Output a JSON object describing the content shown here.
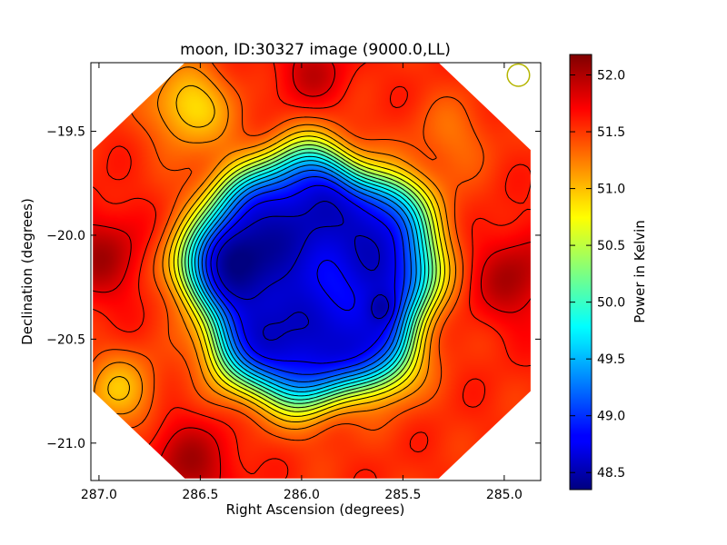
{
  "chart_data": {
    "type": "heatmap",
    "title": "moon, ID:30327 image (9000.0,LL)",
    "xlabel": "Right Ascension (degrees)",
    "ylabel": "Declination (degrees)",
    "xlim": [
      287.04,
      284.82
    ],
    "ylim": [
      -21.18,
      -19.17
    ],
    "x_ticks": [
      {
        "value": 287.0,
        "label": "287.0"
      },
      {
        "value": 286.5,
        "label": "286.5"
      },
      {
        "value": 286.0,
        "label": "286.0"
      },
      {
        "value": 285.5,
        "label": "285.5"
      },
      {
        "value": 285.0,
        "label": "285.0"
      }
    ],
    "y_ticks": [
      {
        "value": -19.5,
        "label": "−19.5"
      },
      {
        "value": -20.0,
        "label": "−20.0"
      },
      {
        "value": -20.5,
        "label": "−20.5"
      },
      {
        "value": -21.0,
        "label": "−21.0"
      }
    ],
    "colorbar": {
      "label": "Power in Kelvin",
      "range": [
        48.35,
        52.18
      ],
      "colormap": "jet",
      "ticks": [
        {
          "value": 48.5,
          "label": "48.5"
        },
        {
          "value": 49.0,
          "label": "49.0"
        },
        {
          "value": 49.5,
          "label": "49.5"
        },
        {
          "value": 50.0,
          "label": "50.0"
        },
        {
          "value": 50.5,
          "label": "50.5"
        },
        {
          "value": 51.0,
          "label": "51.0"
        },
        {
          "value": 51.5,
          "label": "51.5"
        },
        {
          "value": 52.0,
          "label": "52.0"
        }
      ]
    },
    "contour_levels": [
      48.6,
      48.8,
      49.0,
      49.2,
      49.4,
      49.6,
      49.8,
      50.0,
      50.2,
      50.4,
      50.6,
      50.8,
      51.0,
      51.2,
      51.4,
      51.6,
      51.8
    ],
    "field": {
      "baseline": 51.55,
      "disk": {
        "ra": 285.95,
        "dec": -20.2,
        "radius_deg": 0.58,
        "depth": 3.0,
        "edge_width_deg": 0.14
      },
      "features": [
        {
          "ra": 286.35,
          "dec": -20.08,
          "sigma_deg": 0.12,
          "amplitude": -0.35
        },
        {
          "ra": 285.85,
          "dec": -20.25,
          "sigma_deg": 0.13,
          "amplitude": 0.3
        },
        {
          "ra": 285.6,
          "dec": -20.35,
          "sigma_deg": 0.05,
          "amplitude": -0.25
        },
        {
          "ra": 286.98,
          "dec": -20.1,
          "sigma_deg": 0.16,
          "amplitude": 0.45
        },
        {
          "ra": 284.95,
          "dec": -20.2,
          "sigma_deg": 0.16,
          "amplitude": 0.45
        },
        {
          "ra": 286.55,
          "dec": -21.1,
          "sigma_deg": 0.16,
          "amplitude": 0.45
        },
        {
          "ra": 285.95,
          "dec": -19.22,
          "sigma_deg": 0.13,
          "amplitude": 0.35
        },
        {
          "ra": 286.55,
          "dec": -19.38,
          "sigma_deg": 0.14,
          "amplitude": -0.7
        },
        {
          "ra": 286.9,
          "dec": -20.75,
          "sigma_deg": 0.13,
          "amplitude": -0.55
        },
        {
          "ra": 285.25,
          "dec": -19.52,
          "sigma_deg": 0.13,
          "amplitude": -0.25
        }
      ],
      "ripple_amplitude": 0.08
    },
    "footprint": {
      "shape": "octagon",
      "center": {
        "ra": 285.95,
        "dec": -20.17
      },
      "half_width_deg": 1.08,
      "half_height_deg": 1.0
    },
    "beam_marker": {
      "ra": 284.93,
      "dec": -19.23,
      "radius_deg": 0.055,
      "color": "#b5b500"
    },
    "grid": false
  }
}
